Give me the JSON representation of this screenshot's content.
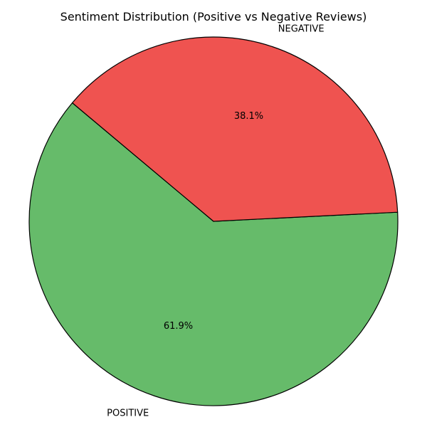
{
  "chart_data": {
    "type": "pie",
    "title": "Sentiment Distribution (Positive vs Negative Reviews)",
    "start_angle_deg": 140,
    "direction": "counterclockwise",
    "edge_color": "#000000",
    "slices": [
      {
        "label": "POSITIVE",
        "value": 61.9,
        "pct_label": "61.9%",
        "color": "#66bb6a"
      },
      {
        "label": "NEGATIVE",
        "value": 38.1,
        "pct_label": "38.1%",
        "color": "#ef5350"
      }
    ]
  }
}
